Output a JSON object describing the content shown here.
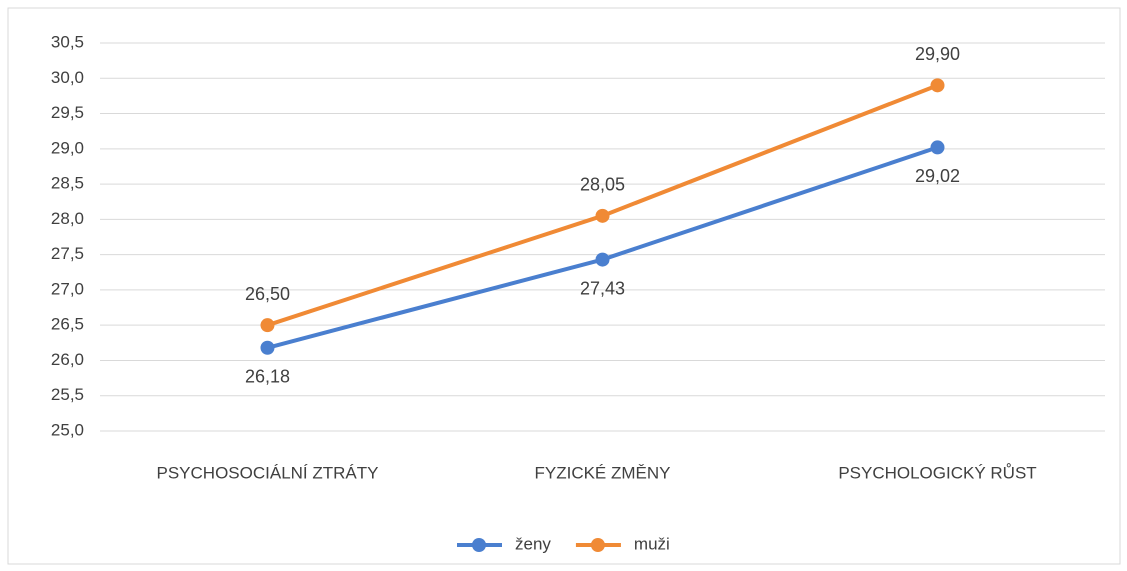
{
  "chart_data": {
    "type": "line",
    "categories": [
      "PSYCHOSOCIÁLNÍ ZTRÁTY",
      "FYZICKÉ ZMĚNY",
      "PSYCHOLOGICKÝ RŮST"
    ],
    "series": [
      {
        "name": "ženy",
        "color": "#4a7fcf",
        "values": [
          26.18,
          27.43,
          29.02
        ],
        "value_labels": [
          "26,18",
          "27,43",
          "29,02"
        ],
        "label_position": "below"
      },
      {
        "name": "muži",
        "color": "#f08a35",
        "values": [
          26.5,
          28.05,
          29.9
        ],
        "value_labels": [
          "26,50",
          "28,05",
          "29,90"
        ],
        "label_position": "above"
      }
    ],
    "ylim": [
      25.0,
      30.5
    ],
    "yticks": [
      {
        "value": 25.0,
        "label": "25,0"
      },
      {
        "value": 25.5,
        "label": "25,5"
      },
      {
        "value": 26.0,
        "label": "26,0"
      },
      {
        "value": 26.5,
        "label": "26,5"
      },
      {
        "value": 27.0,
        "label": "27,0"
      },
      {
        "value": 27.5,
        "label": "27,5"
      },
      {
        "value": 28.0,
        "label": "28,0"
      },
      {
        "value": 28.5,
        "label": "28,5"
      },
      {
        "value": 29.0,
        "label": "29,0"
      },
      {
        "value": 29.5,
        "label": "29,5"
      },
      {
        "value": 30.0,
        "label": "30,0"
      },
      {
        "value": 30.5,
        "label": "30,5"
      }
    ],
    "grid": true,
    "legend": "bottom"
  }
}
